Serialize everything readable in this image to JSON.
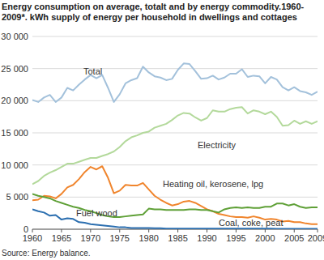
{
  "chart_data": {
    "type": "line",
    "title": "Energy consumption on average, totalt and by energy commodity.1960-2009*. kWh supply of energy per household in dwellings and cottages",
    "source": "Source: Energy balance.",
    "x": [
      1960,
      1961,
      1962,
      1963,
      1964,
      1965,
      1966,
      1967,
      1968,
      1969,
      1970,
      1971,
      1972,
      1973,
      1974,
      1975,
      1976,
      1977,
      1978,
      1979,
      1980,
      1981,
      1982,
      1983,
      1984,
      1985,
      1986,
      1987,
      1988,
      1989,
      1990,
      1991,
      1992,
      1993,
      1994,
      1995,
      1996,
      1997,
      1998,
      1999,
      2000,
      2001,
      2002,
      2003,
      2004,
      2005,
      2006,
      2007,
      2008,
      2009
    ],
    "xlim": [
      1960,
      2009
    ],
    "xticks": [
      1960,
      1965,
      1970,
      1975,
      1980,
      1985,
      1990,
      1995,
      2000,
      2005,
      2009
    ],
    "ylim": [
      0,
      30000
    ],
    "yticks": [
      0,
      {
        "value": 5000,
        "label": "5 000"
      },
      {
        "value": 10000,
        "label": "10 000"
      },
      {
        "value": 15000,
        "label": "15 000"
      },
      {
        "value": 20000,
        "label": "20 000"
      },
      {
        "value": 25000,
        "label": "25 000"
      },
      {
        "value": 30000,
        "label": "30 000"
      }
    ],
    "grid": true,
    "series": [
      {
        "name": "Total",
        "color": "#a3c1db",
        "values": [
          20100,
          19800,
          20500,
          20900,
          19800,
          20500,
          22000,
          21600,
          22500,
          23300,
          24000,
          23500,
          24000,
          22000,
          19800,
          21000,
          22700,
          23200,
          23500,
          25300,
          24400,
          23800,
          23600,
          23200,
          23400,
          24800,
          25800,
          25700,
          24600,
          23400,
          23500,
          23900,
          23300,
          23600,
          24200,
          24200,
          24900,
          23700,
          23900,
          23800,
          22700,
          23700,
          23300,
          22100,
          21600,
          22100,
          21500,
          21300,
          20900,
          21400
        ]
      },
      {
        "name": "Electricity",
        "color": "#b3d99b",
        "values": [
          7000,
          7500,
          8300,
          8800,
          9200,
          9700,
          10200,
          10200,
          10500,
          10800,
          11100,
          11100,
          11400,
          11700,
          12100,
          12800,
          13700,
          14300,
          14600,
          15000,
          15200,
          15800,
          16100,
          16400,
          17000,
          17700,
          18100,
          18000,
          17400,
          16900,
          17300,
          18500,
          18300,
          18300,
          18700,
          18900,
          19000,
          18000,
          18500,
          18300,
          17900,
          18300,
          17500,
          16100,
          16200,
          16900,
          16400,
          16800,
          16400,
          16800
        ]
      },
      {
        "name": "Heating oil, kerosene, lpg",
        "color": "#f0852d",
        "values": [
          4500,
          4600,
          5200,
          5100,
          4800,
          5500,
          6500,
          6900,
          7800,
          8900,
          9700,
          9300,
          9800,
          8000,
          5600,
          6000,
          6900,
          6800,
          6800,
          7200,
          6200,
          5200,
          4600,
          4100,
          3700,
          3900,
          4300,
          4400,
          4100,
          3600,
          3100,
          2800,
          2400,
          2200,
          2000,
          1900,
          1900,
          1800,
          2000,
          1800,
          1500,
          1600,
          1500,
          1200,
          1300,
          1100,
          1100,
          900,
          800,
          800
        ]
      },
      {
        "name": "Fuel wood",
        "color": "#5fa037",
        "values": [
          5500,
          5200,
          5000,
          4800,
          4400,
          4100,
          3800,
          3500,
          3300,
          3000,
          2800,
          2500,
          2200,
          2000,
          1900,
          1900,
          2000,
          2100,
          2200,
          2300,
          3200,
          3100,
          3100,
          3000,
          3000,
          3000,
          3000,
          3100,
          3100,
          3000,
          3000,
          2800,
          2600,
          3100,
          3300,
          3400,
          3300,
          3400,
          3300,
          3300,
          3500,
          3500,
          4000,
          4000,
          3700,
          3900,
          3500,
          3300,
          3400,
          3400
        ]
      },
      {
        "name": "Coal, coke, peat",
        "color": "#2c6fb0",
        "values": [
          3100,
          2800,
          2600,
          2100,
          2200,
          1500,
          1700,
          1600,
          1100,
          1000,
          800,
          700,
          600,
          500,
          400,
          300,
          300,
          200,
          200,
          200,
          200,
          150,
          150,
          100,
          100,
          100,
          100,
          100,
          100,
          100,
          100,
          100,
          100,
          100,
          100,
          100,
          100,
          100,
          100,
          100,
          100,
          100,
          50,
          50,
          50,
          50,
          50,
          50,
          50,
          50
        ]
      }
    ]
  }
}
